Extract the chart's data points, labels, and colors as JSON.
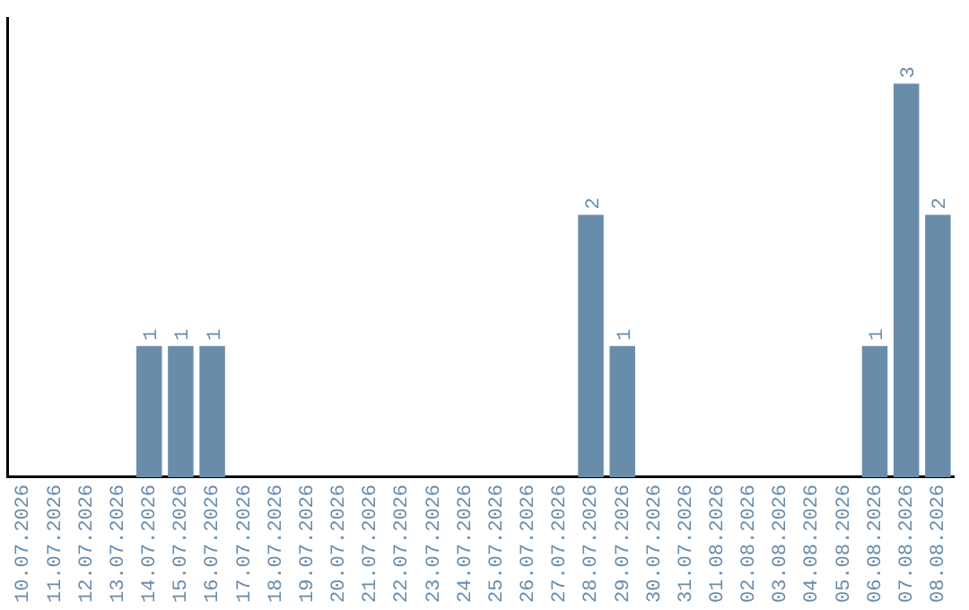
{
  "chart_data": {
    "type": "bar",
    "categories": [
      "10.07.2026",
      "11.07.2026",
      "12.07.2026",
      "13.07.2026",
      "14.07.2026",
      "15.07.2026",
      "16.07.2026",
      "17.07.2026",
      "18.07.2026",
      "19.07.2026",
      "20.07.2026",
      "21.07.2026",
      "22.07.2026",
      "23.07.2026",
      "24.07.2026",
      "25.07.2026",
      "26.07.2026",
      "27.07.2026",
      "28.07.2026",
      "29.07.2026",
      "30.07.2026",
      "31.07.2026",
      "01.08.2026",
      "02.08.2026",
      "03.08.2026",
      "04.08.2026",
      "05.08.2026",
      "06.08.2026",
      "07.08.2026",
      "08.08.2026"
    ],
    "values": [
      0,
      0,
      0,
      0,
      1,
      1,
      1,
      0,
      0,
      0,
      0,
      0,
      0,
      0,
      0,
      0,
      0,
      0,
      2,
      1,
      0,
      0,
      0,
      0,
      0,
      0,
      0,
      1,
      3,
      2
    ],
    "value_labels": [
      null,
      null,
      null,
      null,
      "1",
      "1",
      "1",
      null,
      null,
      null,
      null,
      null,
      null,
      null,
      null,
      null,
      null,
      null,
      "2",
      "1",
      null,
      null,
      null,
      null,
      null,
      null,
      null,
      "1",
      "3",
      "2"
    ],
    "color": "#6a8cab",
    "tick_labels": "x",
    "grid": false,
    "legend": false
  }
}
